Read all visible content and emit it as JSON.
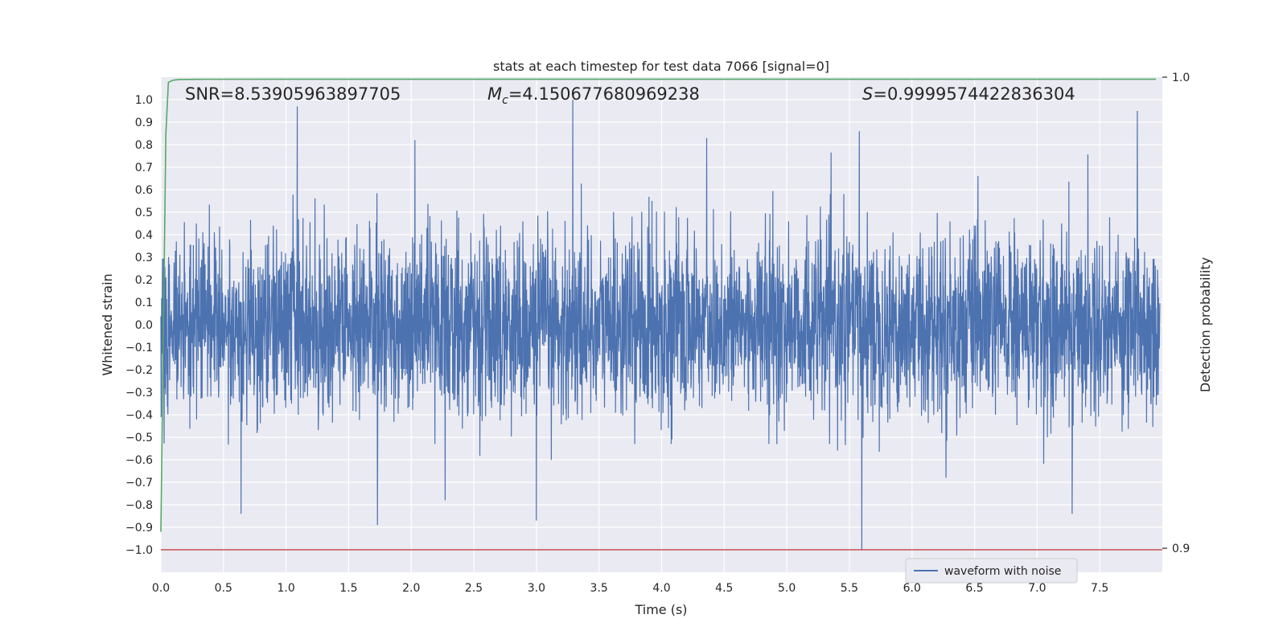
{
  "chart_data": {
    "type": "line",
    "title": "stats at each timestep for test data 7066 [signal=0]",
    "xlabel": "Time (s)",
    "ylabel": "Whitened strain",
    "y2label": "Detection probability",
    "xlim": [
      0,
      8.0
    ],
    "ylim": [
      -1.1,
      1.1
    ],
    "y2lim": [
      0.8949,
      1.0
    ],
    "xticks": [
      "0.0",
      "0.5",
      "1.0",
      "1.5",
      "2.0",
      "2.5",
      "3.0",
      "3.5",
      "4.0",
      "4.5",
      "5.0",
      "5.5",
      "6.0",
      "6.5",
      "7.0",
      "7.5"
    ],
    "yticks": [
      "1.0",
      "0.9",
      "0.8",
      "0.7",
      "0.6",
      "0.5",
      "0.4",
      "0.3",
      "0.2",
      "0.1",
      "0.0",
      "−0.1",
      "−0.2",
      "−0.3",
      "−0.4",
      "−0.5",
      "−0.6",
      "−0.7",
      "−0.8",
      "−0.9",
      "−1.0"
    ],
    "y2ticks": [
      "1.0",
      "0.9"
    ],
    "grid": true,
    "legend": {
      "placement": "lower-center-right",
      "entries": [
        "waveform with noise"
      ]
    },
    "annotations": {
      "snr": "SNR=8.53905963897705",
      "mc_symbol": "M",
      "mc_sub": "c",
      "mc_value": "=4.150677680969238",
      "s_symbol": "S",
      "s_value": "=0.9999574422836304"
    },
    "series": [
      {
        "name": "waveform with noise",
        "color": "#4c72b0",
        "axis": "left",
        "amplitude_envelope": 0.5,
        "spikes": [
          {
            "x": 1.09,
            "y": 0.97
          },
          {
            "x": 3.29,
            "y": 1.0
          },
          {
            "x": 5.58,
            "y": 0.86
          },
          {
            "x": 5.6,
            "y": -1.0
          },
          {
            "x": 7.8,
            "y": 0.95
          },
          {
            "x": 3.0,
            "y": -0.87
          },
          {
            "x": 1.73,
            "y": -0.89
          },
          {
            "x": 0.64,
            "y": -0.84
          },
          {
            "x": 7.28,
            "y": -0.84
          },
          {
            "x": 2.03,
            "y": 0.82
          },
          {
            "x": 4.36,
            "y": 0.83
          }
        ]
      },
      {
        "name": "",
        "color": "#55a868",
        "axis": "right",
        "x": [
          0.0,
          0.02,
          0.04,
          0.06,
          0.1,
          0.15,
          0.3,
          1.0,
          2.0,
          3.0,
          4.0,
          5.0,
          6.0,
          7.0,
          7.95
        ],
        "y": [
          0.9035,
          0.9462,
          0.988,
          0.99891,
          0.99937,
          0.9995,
          0.99955,
          0.99957,
          0.99957,
          0.99957,
          0.99957,
          0.99957,
          0.99957,
          0.99957,
          0.99957
        ]
      },
      {
        "name": "",
        "color": "#c44e52",
        "axis": "left",
        "x": [
          0.0,
          8.0
        ],
        "y": [
          -1.0,
          -1.0
        ]
      }
    ]
  }
}
